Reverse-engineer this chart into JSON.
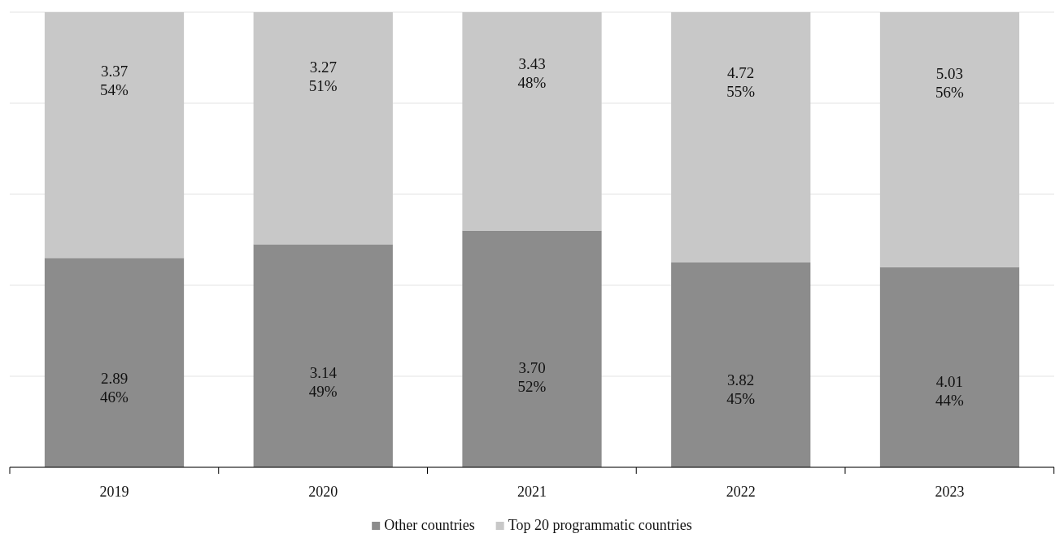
{
  "chart_data": {
    "type": "bar",
    "stacked": true,
    "categories": [
      "2019",
      "2020",
      "2021",
      "2022",
      "2023"
    ],
    "series": [
      {
        "name": "Other countries",
        "color": "#8c8c8c",
        "values": [
          46,
          49,
          52,
          45,
          44
        ],
        "value_labels": [
          "2.89\n46%",
          "3.14\n49%",
          "3.70\n52%",
          "3.82\n45%",
          "4.01\n44%"
        ]
      },
      {
        "name": "Top 20 programmatic countries",
        "color": "#c8c8c8",
        "values": [
          54,
          51,
          48,
          55,
          56
        ],
        "value_labels": [
          "3.37\n54%",
          "3.27\n51%",
          "3.43\n48%",
          "4.72\n55%",
          "5.03\n56%"
        ]
      }
    ],
    "ylim": [
      0,
      100
    ],
    "yticks": [
      {
        "value": 0,
        "label": null
      },
      {
        "value": 20,
        "label": null
      },
      {
        "value": 40,
        "label": null
      },
      {
        "value": 60,
        "label": null
      },
      {
        "value": 80,
        "label": null
      },
      {
        "value": 100,
        "label": null
      }
    ],
    "tick_labels": "x",
    "grid": "y",
    "legend": "bottom"
  }
}
